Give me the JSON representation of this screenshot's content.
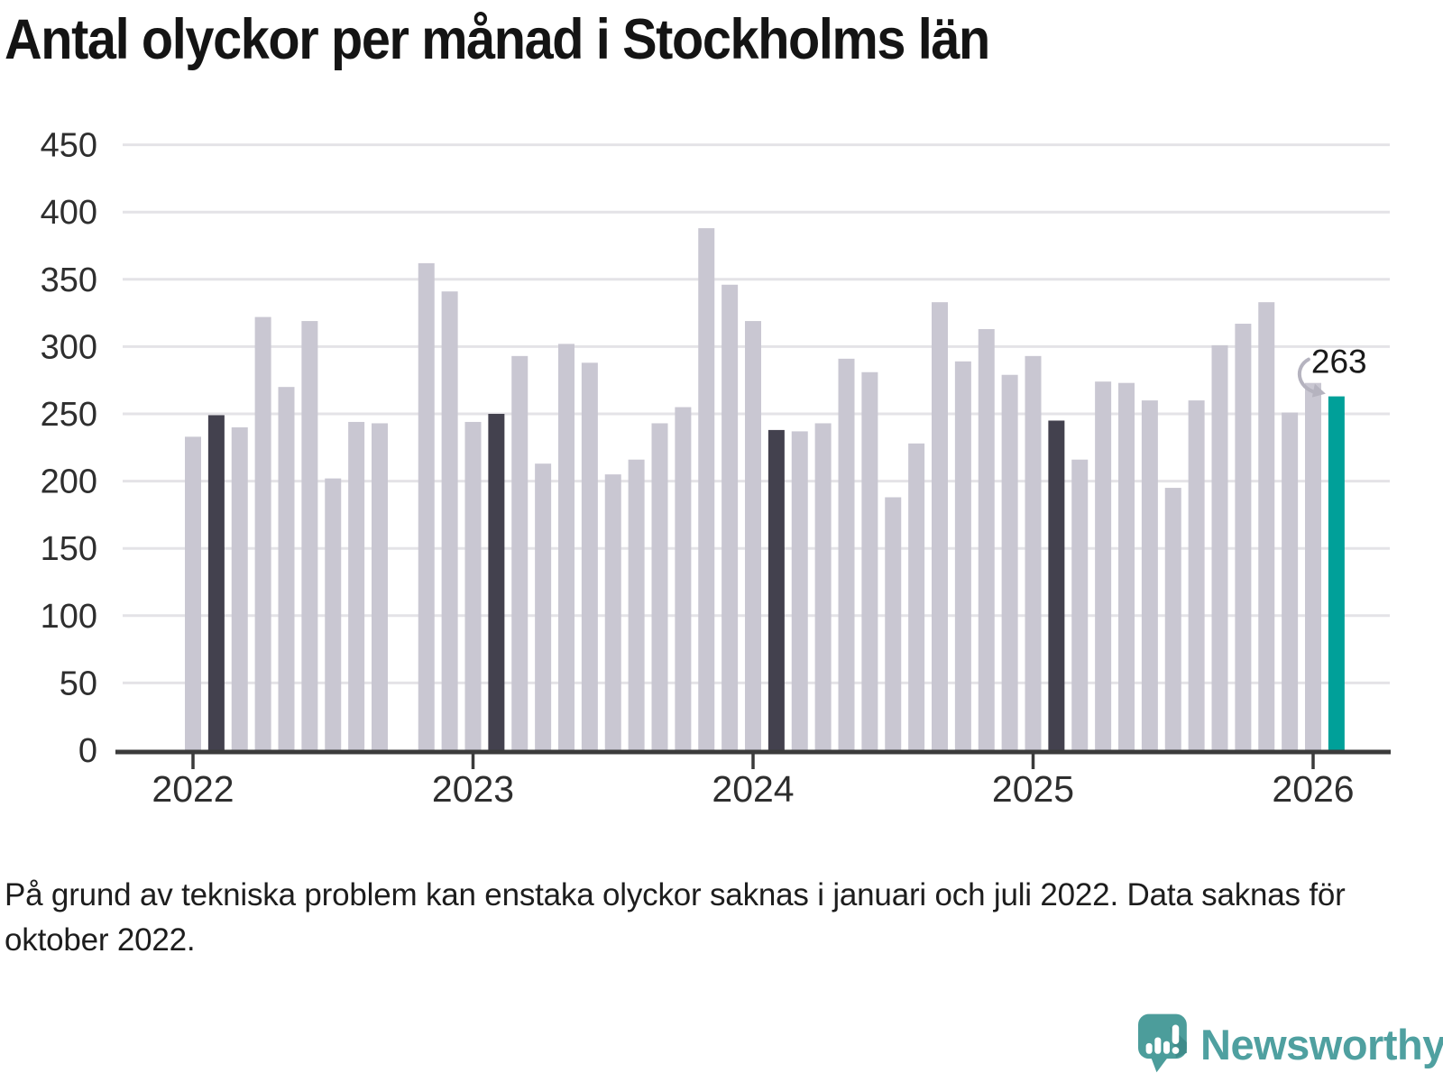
{
  "header": {
    "title": "Antal olyckor per månad i Stockholms län"
  },
  "chart_data": {
    "type": "bar",
    "title": "Antal olyckor per månad i Stockholms län",
    "xlabel": "",
    "ylabel": "",
    "ylim": [
      0,
      450
    ],
    "y_ticks": [
      0,
      50,
      100,
      150,
      200,
      250,
      300,
      350,
      400,
      450
    ],
    "x_tick_labels": [
      "2022",
      "2023",
      "2024",
      "2025",
      "2026"
    ],
    "grid": true,
    "legend_position": "none",
    "colors": {
      "regular": "#c9c7d2",
      "highlight": "#43414e",
      "current": "#00a099",
      "gridline": "#e4e3e7",
      "axis_line": "#3b3b3b",
      "axis_text": "#2e2e2e",
      "annotation_text": "#1a1a1a",
      "annotation_arrow": "#b5b3bf"
    },
    "months": [
      {
        "month": "2022-01",
        "value": 233,
        "role": "regular"
      },
      {
        "month": "2022-02",
        "value": 249,
        "role": "highlight"
      },
      {
        "month": "2022-03",
        "value": 240,
        "role": "regular"
      },
      {
        "month": "2022-04",
        "value": 322,
        "role": "regular"
      },
      {
        "month": "2022-05",
        "value": 270,
        "role": "regular"
      },
      {
        "month": "2022-06",
        "value": 319,
        "role": "regular"
      },
      {
        "month": "2022-07",
        "value": 202,
        "role": "regular"
      },
      {
        "month": "2022-08",
        "value": 244,
        "role": "regular"
      },
      {
        "month": "2022-09",
        "value": 243,
        "role": "regular"
      },
      {
        "month": "2022-10",
        "value": null,
        "role": "missing"
      },
      {
        "month": "2022-11",
        "value": 362,
        "role": "regular"
      },
      {
        "month": "2022-12",
        "value": 341,
        "role": "regular"
      },
      {
        "month": "2023-01",
        "value": 244,
        "role": "regular"
      },
      {
        "month": "2023-02",
        "value": 250,
        "role": "highlight"
      },
      {
        "month": "2023-03",
        "value": 293,
        "role": "regular"
      },
      {
        "month": "2023-04",
        "value": 213,
        "role": "regular"
      },
      {
        "month": "2023-05",
        "value": 302,
        "role": "regular"
      },
      {
        "month": "2023-06",
        "value": 288,
        "role": "regular"
      },
      {
        "month": "2023-07",
        "value": 205,
        "role": "regular"
      },
      {
        "month": "2023-08",
        "value": 216,
        "role": "regular"
      },
      {
        "month": "2023-09",
        "value": 243,
        "role": "regular"
      },
      {
        "month": "2023-10",
        "value": 255,
        "role": "regular"
      },
      {
        "month": "2023-11",
        "value": 388,
        "role": "regular"
      },
      {
        "month": "2023-12",
        "value": 346,
        "role": "regular"
      },
      {
        "month": "2024-01",
        "value": 319,
        "role": "regular"
      },
      {
        "month": "2024-02",
        "value": 238,
        "role": "highlight"
      },
      {
        "month": "2024-03",
        "value": 237,
        "role": "regular"
      },
      {
        "month": "2024-04",
        "value": 243,
        "role": "regular"
      },
      {
        "month": "2024-05",
        "value": 291,
        "role": "regular"
      },
      {
        "month": "2024-06",
        "value": 281,
        "role": "regular"
      },
      {
        "month": "2024-07",
        "value": 188,
        "role": "regular"
      },
      {
        "month": "2024-08",
        "value": 228,
        "role": "regular"
      },
      {
        "month": "2024-09",
        "value": 333,
        "role": "regular"
      },
      {
        "month": "2024-10",
        "value": 289,
        "role": "regular"
      },
      {
        "month": "2024-11",
        "value": 313,
        "role": "regular"
      },
      {
        "month": "2024-12",
        "value": 279,
        "role": "regular"
      },
      {
        "month": "2025-01",
        "value": 293,
        "role": "regular"
      },
      {
        "month": "2025-02",
        "value": 245,
        "role": "highlight"
      },
      {
        "month": "2025-03",
        "value": 216,
        "role": "regular"
      },
      {
        "month": "2025-04",
        "value": 274,
        "role": "regular"
      },
      {
        "month": "2025-05",
        "value": 273,
        "role": "regular"
      },
      {
        "month": "2025-06",
        "value": 260,
        "role": "regular"
      },
      {
        "month": "2025-07",
        "value": 195,
        "role": "regular"
      },
      {
        "month": "2025-08",
        "value": 260,
        "role": "regular"
      },
      {
        "month": "2025-09",
        "value": 301,
        "role": "regular"
      },
      {
        "month": "2025-10",
        "value": 317,
        "role": "regular"
      },
      {
        "month": "2025-11",
        "value": 333,
        "role": "regular"
      },
      {
        "month": "2025-12",
        "value": 251,
        "role": "regular"
      },
      {
        "month": "2026-01",
        "value": 273,
        "role": "regular"
      },
      {
        "month": "2026-02",
        "value": 263,
        "role": "current"
      }
    ],
    "annotation": {
      "label": "263",
      "month": "2026-02"
    }
  },
  "footnote": {
    "text": "På grund av tekniska problem kan enstaka olyckor saknas i januari och juli 2022. Data saknas för oktober 2022."
  },
  "brand": {
    "name": "Newsworthy",
    "bubble_color": "#4c9d9b",
    "bubble_shade_color": "#3f8b8a",
    "wordmark_color": "#4fa0a0"
  }
}
